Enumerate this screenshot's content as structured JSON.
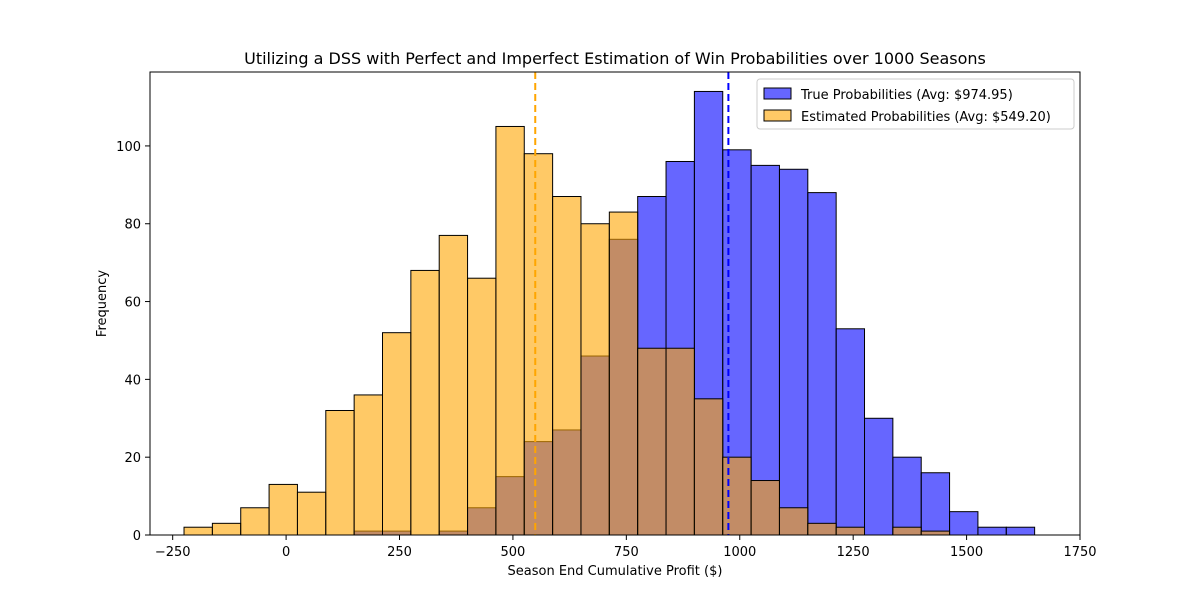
{
  "chart_data": {
    "type": "histogram",
    "title": "Utilizing a DSS with Perfect and Imperfect Estimation of Win Probabilities over 1000 Seasons",
    "xlabel": "Season End Cumulative Profit ($)",
    "ylabel": "Frequency",
    "xlim": [
      -300,
      1750
    ],
    "ylim": [
      0,
      119
    ],
    "xticks": [
      -250,
      0,
      250,
      500,
      750,
      1000,
      1250,
      1500,
      1750
    ],
    "yticks": [
      0,
      20,
      40,
      60,
      80,
      100
    ],
    "grid": false,
    "legend_position": "top-right",
    "bin_edges": [
      -225,
      -162.5,
      -100,
      -37.5,
      25,
      87.5,
      150,
      212.5,
      275,
      337.5,
      400,
      462.5,
      525,
      587.5,
      650,
      712.5,
      775,
      837.5,
      900,
      962.5,
      1025,
      1087.5,
      1150,
      1212.5,
      1275,
      1337.5,
      1400,
      1462.5,
      1525,
      1587.5,
      1650
    ],
    "series": [
      {
        "name": "True Probabilities (Avg: $974.95)",
        "color": "#0000ff",
        "fill_opacity": 0.6,
        "counts": [
          0,
          0,
          0,
          0,
          0,
          0,
          1,
          1,
          0,
          1,
          7,
          15,
          24,
          27,
          46,
          76,
          87,
          96,
          114,
          99,
          95,
          94,
          88,
          53,
          30,
          20,
          16,
          6,
          2,
          2
        ],
        "mean": 974.95,
        "mean_line_color": "#0000ff"
      },
      {
        "name": "Estimated Probabilities (Avg: $549.20)",
        "color": "#ffa500",
        "fill_opacity": 0.6,
        "counts": [
          2,
          3,
          7,
          13,
          11,
          32,
          36,
          52,
          68,
          77,
          66,
          105,
          98,
          87,
          80,
          83,
          48,
          48,
          35,
          20,
          14,
          7,
          3,
          2,
          0,
          2,
          1,
          0,
          0,
          0
        ],
        "mean": 549.2,
        "mean_line_color": "#ffa500"
      }
    ]
  }
}
